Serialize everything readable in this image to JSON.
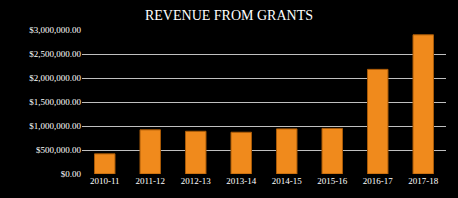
{
  "chart_data": {
    "type": "bar",
    "title": "REVENUE FROM GRANTS",
    "categories": [
      "2010-11",
      "2011-12",
      "2012-13",
      "2013-14",
      "2014-15",
      "2015-16",
      "2016-17",
      "2017-18"
    ],
    "values": [
      420000,
      920000,
      890000,
      870000,
      940000,
      950000,
      2180000,
      2900000
    ],
    "color": "#f08a1c",
    "ylim": [
      0,
      3000000
    ],
    "yticks": [
      {
        "value": 0,
        "label": "$0.00"
      },
      {
        "value": 500000,
        "label": "$500,000.00"
      },
      {
        "value": 1000000,
        "label": "$1,000,000.00"
      },
      {
        "value": 1500000,
        "label": "$1,500,000.00"
      },
      {
        "value": 2000000,
        "label": "$2,000,000.00"
      },
      {
        "value": 2500000,
        "label": "$2,500,000.00"
      },
      {
        "value": 3000000,
        "label": "$3,000,000.00"
      }
    ],
    "grid": true
  }
}
